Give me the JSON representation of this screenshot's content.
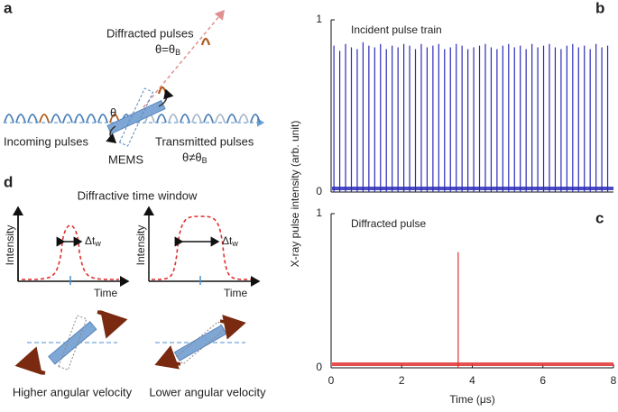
{
  "panels": {
    "a": {
      "letter": "a",
      "diffracted": "Diffracted pulses",
      "cond_in": {
        "text": "θ=θ",
        "sub": "B"
      },
      "angle": "θ",
      "incoming": "Incoming pulses",
      "mems": "MEMS",
      "transmitted": "Transmitted pulses",
      "cond_out": {
        "text": "θ≠θ",
        "sub": "B"
      }
    },
    "d": {
      "letter": "d",
      "title": "Diffractive time window",
      "left": {
        "ylabel": "Intensity",
        "xlabel": "Time",
        "width": {
          "text": "Δt",
          "sub": "w"
        },
        "caption": "Higher angular velocity"
      },
      "right": {
        "ylabel": "Intensity",
        "xlabel": "Time",
        "width": {
          "text": "Δt",
          "sub": "w"
        },
        "caption": "Lower angular velocity"
      }
    }
  },
  "chart_data": [
    {
      "type": "spike",
      "panel": "b",
      "ylabel": "X-ray pulse intensity (arb. unit)",
      "xlim": [
        0,
        8
      ],
      "ylim": [
        0,
        1
      ],
      "yticks": [
        0,
        1
      ],
      "series": [
        {
          "name": "Incident pulse train",
          "color": "#2b2bb8",
          "x": [
            0.08,
            0.245,
            0.41,
            0.575,
            0.74,
            0.905,
            1.07,
            1.235,
            1.4,
            1.565,
            1.73,
            1.895,
            2.06,
            2.225,
            2.39,
            2.555,
            2.72,
            2.885,
            3.05,
            3.215,
            3.38,
            3.545,
            3.71,
            3.875,
            4.04,
            4.205,
            4.37,
            4.535,
            4.7,
            4.865,
            5.03,
            5.195,
            5.36,
            5.525,
            5.69,
            5.855,
            6.02,
            6.185,
            6.35,
            6.515,
            6.68,
            6.845,
            7.01,
            7.175,
            7.34,
            7.505,
            7.67,
            7.835
          ],
          "values": [
            0.85,
            0.82,
            0.86,
            0.84,
            0.83,
            0.87,
            0.85,
            0.84,
            0.86,
            0.83,
            0.85,
            0.84,
            0.86,
            0.85,
            0.83,
            0.86,
            0.84,
            0.85,
            0.86,
            0.83,
            0.84,
            0.86,
            0.85,
            0.83,
            0.84,
            0.85,
            0.86,
            0.84,
            0.83,
            0.85,
            0.86,
            0.84,
            0.85,
            0.83,
            0.86,
            0.84,
            0.85,
            0.86,
            0.84,
            0.83,
            0.85,
            0.86,
            0.84,
            0.85,
            0.83,
            0.86,
            0.84,
            0.85
          ]
        }
      ]
    },
    {
      "type": "spike",
      "panel": "c",
      "xlabel": "Time (μs)",
      "xlim": [
        0,
        8
      ],
      "xticks": [
        0,
        2,
        4,
        6,
        8
      ],
      "ylim": [
        0,
        1
      ],
      "yticks": [
        0,
        1
      ],
      "series": [
        {
          "name": "Diffracted pulse",
          "color": "#e03030",
          "x": [
            3.6
          ],
          "values": [
            0.75
          ]
        }
      ]
    }
  ]
}
